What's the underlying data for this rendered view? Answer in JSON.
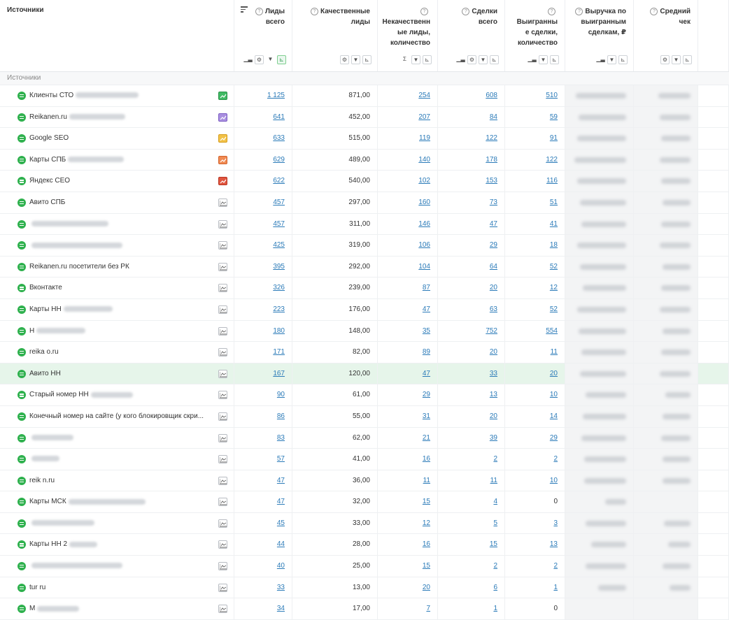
{
  "header": {
    "sources_title": "Источники",
    "columns": [
      {
        "key": "leads_total",
        "lines": [
          "Лиды",
          "всего"
        ]
      },
      {
        "key": "quality_leads",
        "lines": [
          "Качественные",
          "лиды"
        ]
      },
      {
        "key": "bad_leads",
        "lines": [
          "",
          "Некачественн",
          "ые лиды,",
          "количество"
        ]
      },
      {
        "key": "deals_total",
        "lines": [
          "Сделки",
          "всего"
        ]
      },
      {
        "key": "won_deals",
        "lines": [
          "",
          "Выигранны",
          "е сделки,",
          "количество"
        ]
      },
      {
        "key": "revenue",
        "lines": [
          "Выручка по",
          "выигранным",
          "сделкам, ₽"
        ]
      },
      {
        "key": "avg_check",
        "lines": [
          "Средний",
          "чек"
        ]
      }
    ]
  },
  "group_label": "Источники",
  "colors": {
    "accent_green": "#2fb14e",
    "link": "#2a7ab8",
    "highlight_row": "#e6f5ea"
  },
  "rows": [
    {
      "name": "Клиенты СТО",
      "blur": 90,
      "chart": "green",
      "leads": "1 125",
      "quality": "871,00",
      "bad": "254",
      "deals": "608",
      "won": "510"
    },
    {
      "name": "Reikanen.ru",
      "blur": 80,
      "chart": "purple",
      "leads": "641",
      "quality": "452,00",
      "bad": "207",
      "deals": "84",
      "won": "59"
    },
    {
      "name": "Google SEO",
      "blur": 0,
      "chart": "yellow",
      "leads": "633",
      "quality": "515,00",
      "bad": "119",
      "deals": "122",
      "won": "91"
    },
    {
      "name": "Карты СПБ",
      "blur": 80,
      "chart": "orange",
      "leads": "629",
      "quality": "489,00",
      "bad": "140",
      "deals": "178",
      "won": "122"
    },
    {
      "name": "Яндекс СЕО",
      "blur": 0,
      "chart": "red",
      "leads": "622",
      "quality": "540,00",
      "bad": "102",
      "deals": "153",
      "won": "116"
    },
    {
      "name": "Авито СПБ",
      "blur": 0,
      "chart": "plain",
      "leads": "457",
      "quality": "297,00",
      "bad": "160",
      "deals": "73",
      "won": "51"
    },
    {
      "name": "",
      "blur": 110,
      "chart": "plain",
      "leads": "457",
      "quality": "311,00",
      "bad": "146",
      "deals": "47",
      "won": "41"
    },
    {
      "name": "",
      "blur": 130,
      "chart": "plain",
      "leads": "425",
      "quality": "319,00",
      "bad": "106",
      "deals": "29",
      "won": "18"
    },
    {
      "name": "Reikanen.ru посетители без РК",
      "blur": 0,
      "chart": "plain",
      "leads": "395",
      "quality": "292,00",
      "bad": "104",
      "deals": "64",
      "won": "52"
    },
    {
      "name": "Вконтакте",
      "blur": 0,
      "chart": "plain",
      "leads": "326",
      "quality": "239,00",
      "bad": "87",
      "deals": "20",
      "won": "12"
    },
    {
      "name": "Карты НН",
      "blur": 70,
      "chart": "plain",
      "leads": "223",
      "quality": "176,00",
      "bad": "47",
      "deals": "63",
      "won": "52"
    },
    {
      "name": "Н",
      "blur": 70,
      "chart": "plain",
      "leads": "180",
      "quality": "148,00",
      "bad": "35",
      "deals": "752",
      "won": "554"
    },
    {
      "name": "reika      o.ru",
      "blur": 0,
      "chart": "plain",
      "leads": "171",
      "quality": "82,00",
      "bad": "89",
      "deals": "20",
      "won": "11"
    },
    {
      "name": "Авито НН",
      "blur": 0,
      "chart": "plain",
      "leads": "167",
      "quality": "120,00",
      "bad": "47",
      "deals": "33",
      "won": "20",
      "hl": true
    },
    {
      "name": "Старый номер НН",
      "blur": 60,
      "chart": "plain",
      "leads": "90",
      "quality": "61,00",
      "bad": "29",
      "deals": "13",
      "won": "10"
    },
    {
      "name": "Конечный номер на сайте (у кого блокировщик скри...",
      "blur": 0,
      "chart": "plain",
      "leads": "86",
      "quality": "55,00",
      "bad": "31",
      "deals": "20",
      "won": "14"
    },
    {
      "name": "",
      "blur": 60,
      "chart": "plain",
      "leads": "83",
      "quality": "62,00",
      "bad": "21",
      "deals": "39",
      "won": "29"
    },
    {
      "name": "",
      "blur": 40,
      "chart": "plain",
      "leads": "57",
      "quality": "41,00",
      "bad": "16",
      "deals": "2",
      "won": "2"
    },
    {
      "name": "reik        n.ru",
      "blur": 0,
      "chart": "plain",
      "leads": "47",
      "quality": "36,00",
      "bad": "11",
      "deals": "11",
      "won": "10"
    },
    {
      "name": "Карты МСК",
      "blur": 110,
      "chart": "plain",
      "leads": "47",
      "quality": "32,00",
      "bad": "15",
      "deals": "4",
      "won": "0",
      "won_plain": true
    },
    {
      "name": "",
      "blur": 90,
      "chart": "plain",
      "leads": "45",
      "quality": "33,00",
      "bad": "12",
      "deals": "5",
      "won": "3"
    },
    {
      "name": "Карты НН 2",
      "blur": 40,
      "chart": "plain",
      "leads": "44",
      "quality": "28,00",
      "bad": "16",
      "deals": "15",
      "won": "13"
    },
    {
      "name": "",
      "blur": 130,
      "chart": "plain",
      "leads": "40",
      "quality": "25,00",
      "bad": "15",
      "deals": "2",
      "won": "2"
    },
    {
      "name": "tur        ru",
      "blur": 0,
      "chart": "plain",
      "leads": "33",
      "quality": "13,00",
      "bad": "20",
      "deals": "6",
      "won": "1"
    },
    {
      "name": "М",
      "blur": 60,
      "chart": "plain",
      "leads": "34",
      "quality": "17,00",
      "bad": "7",
      "deals": "1",
      "won": "0",
      "won_plain": true
    }
  ]
}
